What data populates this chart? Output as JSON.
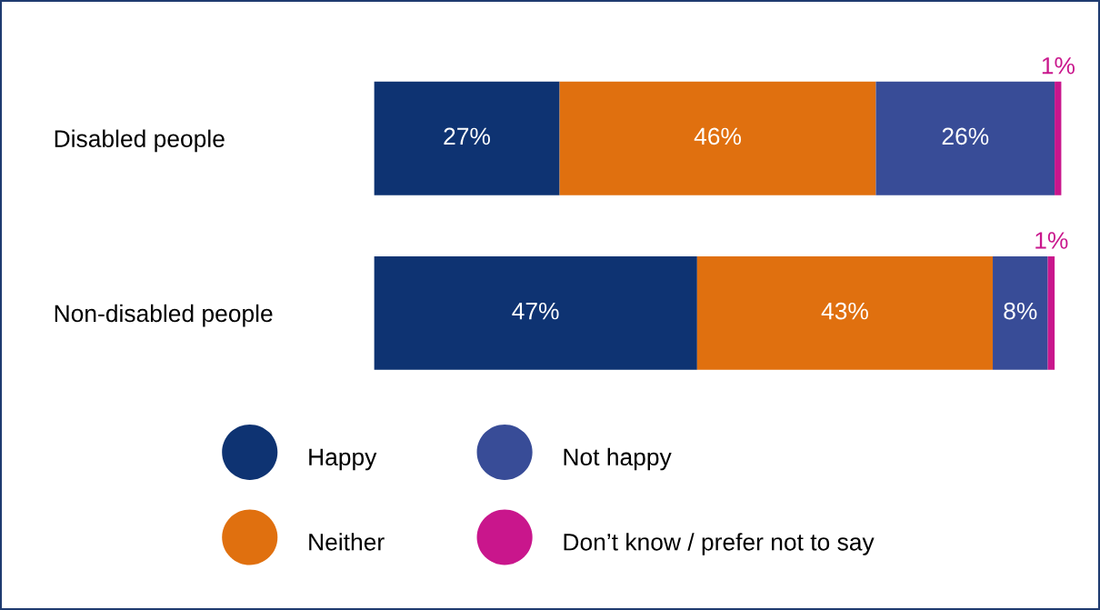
{
  "chart_data": {
    "type": "bar",
    "orientation": "horizontal",
    "stacked": true,
    "legend": "bottom",
    "categories": [
      "Disabled people",
      "Non-disabled people"
    ],
    "series": [
      {
        "name": "Happy",
        "color": "#0e3372",
        "values": [
          27,
          47
        ],
        "value_labels": [
          "27%",
          "47%"
        ]
      },
      {
        "name": "Neither",
        "color": "#e0700f",
        "values": [
          46,
          43
        ],
        "value_labels": [
          "46%",
          "43%"
        ]
      },
      {
        "name": "Not happy",
        "color": "#384c97",
        "values": [
          26,
          8
        ],
        "value_labels": [
          "26%",
          "8%"
        ]
      },
      {
        "name": "Don’t know / prefer not to say",
        "color": "#c9168c",
        "values": [
          1,
          1
        ],
        "value_labels": [
          "1%",
          "1%"
        ]
      }
    ]
  }
}
